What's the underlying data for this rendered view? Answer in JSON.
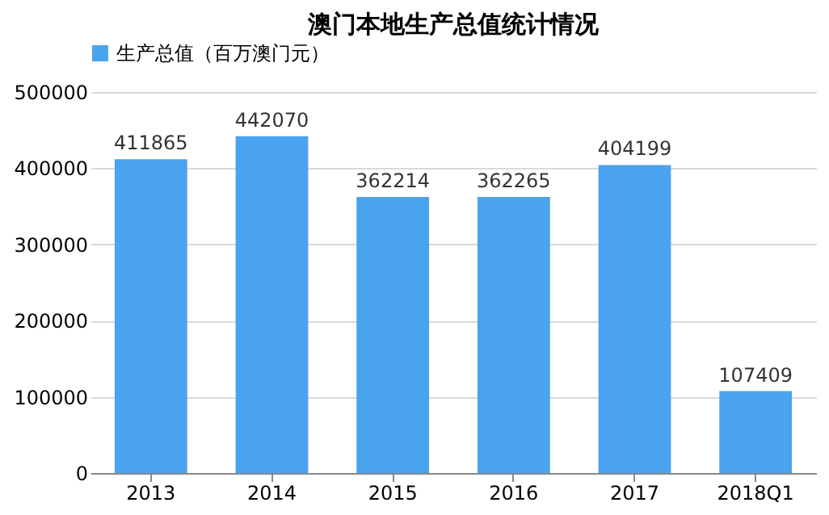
{
  "chart_data": {
    "type": "bar",
    "title": "澳门本地生产总值统计情况",
    "categories": [
      "2013",
      "2014",
      "2015",
      "2016",
      "2017",
      "2018Q1"
    ],
    "series": [
      {
        "name": "生产总值（百万澳门元）",
        "color": "#4aa3ef",
        "values": [
          411865,
          442070,
          362214,
          362265,
          404199,
          107409
        ]
      }
    ],
    "ylim": [
      0,
      500000
    ],
    "yticks": [
      0,
      100000,
      200000,
      300000,
      400000,
      500000
    ],
    "grid": "y",
    "legend": "top",
    "data_labels": true
  }
}
